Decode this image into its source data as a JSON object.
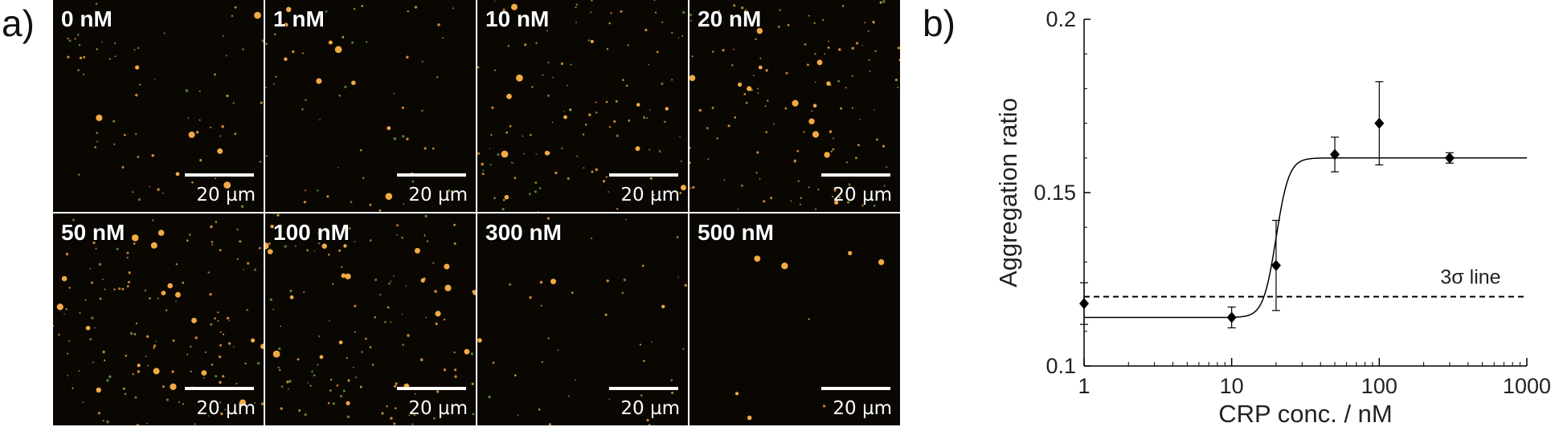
{
  "panel_a": {
    "letter": "a)",
    "tiles": [
      {
        "label": "0 nM",
        "scale": "20 µm"
      },
      {
        "label": "1 nM",
        "scale": "20 µm"
      },
      {
        "label": "10 nM",
        "scale": "20 µm"
      },
      {
        "label": "20 nM",
        "scale": "20 µm"
      },
      {
        "label": "50 nM",
        "scale": "20 µm"
      },
      {
        "label": "100 nM",
        "scale": "20 µm"
      },
      {
        "label": "300 nM",
        "scale": "20 µm"
      },
      {
        "label": "500 nM",
        "scale": "20 µm"
      }
    ],
    "colors": {
      "background": "#0a0602",
      "spot_orange": "#ffb347",
      "spot_green": "#6aa64a"
    }
  },
  "panel_b": {
    "letter": "b)"
  },
  "chart_data": {
    "type": "scatter",
    "xlabel": "CRP conc. / nM",
    "ylabel": "Aggregation ratio",
    "xscale": "log",
    "xlim": [
      1,
      1000
    ],
    "ylim": [
      0.1,
      0.2
    ],
    "xticks": [
      1,
      10,
      100,
      1000
    ],
    "xtick_labels": [
      "1",
      "10",
      "100",
      "1000"
    ],
    "yticks": [
      0.1,
      0.15,
      0.2
    ],
    "ytick_labels": [
      "0.1",
      "0.15",
      "0.2"
    ],
    "grid": false,
    "points": [
      {
        "x": 1,
        "y": 0.118,
        "err": 0.006
      },
      {
        "x": 10,
        "y": 0.114,
        "err": 0.003
      },
      {
        "x": 20,
        "y": 0.129,
        "err": 0.013
      },
      {
        "x": 50,
        "y": 0.161,
        "err": 0.005
      },
      {
        "x": 100,
        "y": 0.17,
        "err": 0.012
      },
      {
        "x": 300,
        "y": 0.16,
        "err": 0.0015
      }
    ],
    "fit": {
      "bottom": 0.114,
      "top": 0.16,
      "x0": 20,
      "steepness": 10
    },
    "threshold": {
      "y": 0.12,
      "label": "3σ line"
    }
  }
}
